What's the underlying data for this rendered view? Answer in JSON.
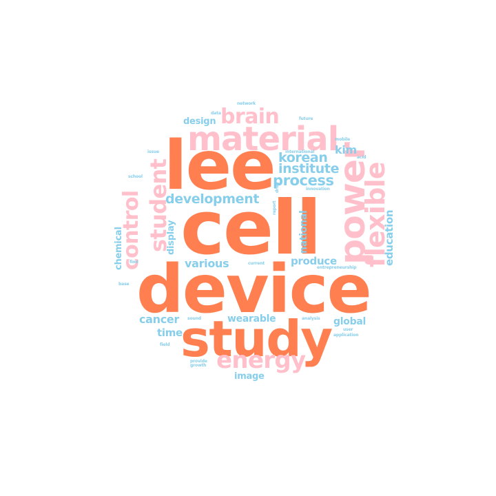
{
  "word_cloud": {
    "colors": {
      "orange": "#ff7f50",
      "pink": "#ffc0cb",
      "blue": "#87ceeb"
    },
    "words": [
      {
        "text": "lee",
        "color": "orange"
      },
      {
        "text": "cell",
        "color": "orange"
      },
      {
        "text": "device",
        "color": "orange"
      },
      {
        "text": "study",
        "color": "orange"
      },
      {
        "text": "material",
        "color": "pink"
      },
      {
        "text": "power",
        "color": "pink"
      },
      {
        "text": "flexible",
        "color": "pink"
      },
      {
        "text": "student",
        "color": "pink"
      },
      {
        "text": "control",
        "color": "pink"
      },
      {
        "text": "brain",
        "color": "pink"
      },
      {
        "text": "energy",
        "color": "pink"
      },
      {
        "text": "institute",
        "color": "blue"
      },
      {
        "text": "korean",
        "color": "blue"
      },
      {
        "text": "process",
        "color": "blue"
      },
      {
        "text": "development",
        "color": "blue"
      },
      {
        "text": "kim",
        "color": "blue"
      },
      {
        "text": "design",
        "color": "blue"
      },
      {
        "text": "education",
        "color": "blue"
      },
      {
        "text": "national",
        "color": "blue"
      },
      {
        "text": "display",
        "color": "blue"
      },
      {
        "text": "various",
        "color": "blue"
      },
      {
        "text": "produce",
        "color": "blue"
      },
      {
        "text": "chemical",
        "color": "blue"
      },
      {
        "text": "cancer",
        "color": "blue"
      },
      {
        "text": "wearable",
        "color": "blue"
      },
      {
        "text": "global",
        "color": "blue"
      },
      {
        "text": "time",
        "color": "blue"
      },
      {
        "text": "image",
        "color": "blue"
      },
      {
        "text": "network",
        "color": "blue"
      },
      {
        "text": "data",
        "color": "blue"
      },
      {
        "text": "future",
        "color": "blue"
      },
      {
        "text": "mobile",
        "color": "blue"
      },
      {
        "text": "issue",
        "color": "blue"
      },
      {
        "text": "international",
        "color": "blue"
      },
      {
        "text": "acid",
        "color": "blue"
      },
      {
        "text": "school",
        "color": "blue"
      },
      {
        "text": "drug",
        "color": "blue"
      },
      {
        "text": "innovation",
        "color": "blue"
      },
      {
        "text": "report",
        "color": "blue"
      },
      {
        "text": "current",
        "color": "blue"
      },
      {
        "text": "entrepreneurship",
        "color": "blue"
      },
      {
        "text": "find",
        "color": "blue"
      },
      {
        "text": "base",
        "color": "blue"
      },
      {
        "text": "sound",
        "color": "blue"
      },
      {
        "text": "analysis",
        "color": "blue"
      },
      {
        "text": "user",
        "color": "blue"
      },
      {
        "text": "application",
        "color": "blue"
      },
      {
        "text": "field",
        "color": "blue"
      },
      {
        "text": "provide",
        "color": "blue"
      },
      {
        "text": "growth",
        "color": "blue"
      }
    ]
  }
}
